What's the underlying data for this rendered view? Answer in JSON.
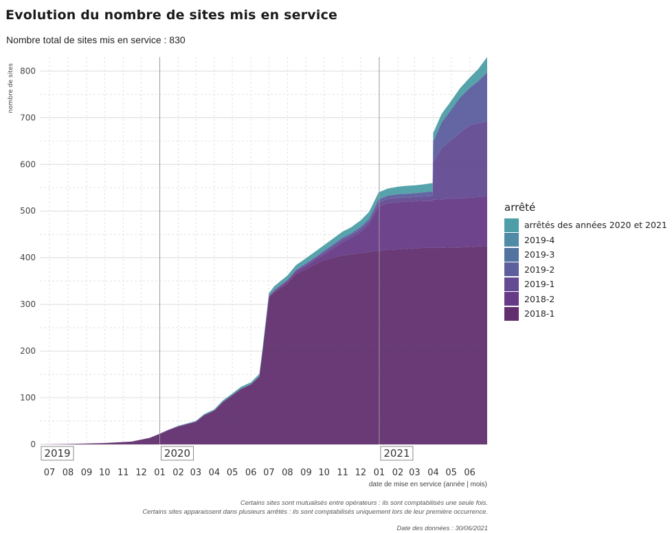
{
  "header": {
    "title": "Evolution du nombre de sites mis en service",
    "subtitle": "Nombre total de sites mis en service : 830"
  },
  "captions": {
    "line1": "Certains sites sont mutualisés entre opérateurs : ils sont comptabilisés une seule fois.",
    "line2": "Certains sites apparaissent dans plusieurs arrêtés : ils sont comptabilisés uniquement lors de leur première occurrence.",
    "date": "Date des données : 30/06/2021"
  },
  "colors": {
    "arretes_2020_2021": "#4d9ea6",
    "a2019_4": "#4f8aa6",
    "a2019_3": "#52729f",
    "a2019_2": "#5c5e9e",
    "a2019_1": "#634a92",
    "a2018_2": "#663a86",
    "a2018_1": "#612f6e",
    "grid": "#dcdcdc",
    "year_line": "#9a9a9a"
  },
  "chart_data": {
    "type": "area",
    "stacked": true,
    "ylabel": "nombre de sites",
    "xlabel": "date de mise en service (année | mois)",
    "ylim": [
      0,
      830
    ],
    "yticks": [
      0,
      100,
      200,
      300,
      400,
      500,
      600,
      700,
      800
    ],
    "xlim": [
      "2019-06-15",
      "2021-06-30"
    ],
    "month_ticks": [
      {
        "date": "2019-07-01",
        "label": "07"
      },
      {
        "date": "2019-08-01",
        "label": "08"
      },
      {
        "date": "2019-09-01",
        "label": "09"
      },
      {
        "date": "2019-10-01",
        "label": "10"
      },
      {
        "date": "2019-11-01",
        "label": "11"
      },
      {
        "date": "2019-12-01",
        "label": "12"
      },
      {
        "date": "2020-01-01",
        "label": "01"
      },
      {
        "date": "2020-02-01",
        "label": "02"
      },
      {
        "date": "2020-03-01",
        "label": "03"
      },
      {
        "date": "2020-04-01",
        "label": "04"
      },
      {
        "date": "2020-05-01",
        "label": "05"
      },
      {
        "date": "2020-06-01",
        "label": "06"
      },
      {
        "date": "2020-07-01",
        "label": "07"
      },
      {
        "date": "2020-08-01",
        "label": "08"
      },
      {
        "date": "2020-09-01",
        "label": "09"
      },
      {
        "date": "2020-10-01",
        "label": "10"
      },
      {
        "date": "2020-11-01",
        "label": "11"
      },
      {
        "date": "2020-12-01",
        "label": "12"
      },
      {
        "date": "2021-01-01",
        "label": "01"
      },
      {
        "date": "2021-02-01",
        "label": "02"
      },
      {
        "date": "2021-03-01",
        "label": "03"
      },
      {
        "date": "2021-04-01",
        "label": "04"
      },
      {
        "date": "2021-05-01",
        "label": "05"
      },
      {
        "date": "2021-06-01",
        "label": "06"
      }
    ],
    "year_markers": [
      {
        "date": "2019-06-15",
        "label": "2019"
      },
      {
        "date": "2020-01-01",
        "label": "2020"
      },
      {
        "date": "2021-01-01",
        "label": "2021"
      }
    ],
    "legend_title": "arrêté",
    "legend_order": [
      "arrêtés des années 2020 et 2021",
      "2019-4",
      "2019-3",
      "2019-2",
      "2019-1",
      "2018-2",
      "2018-1"
    ],
    "x": [
      "2019-06-15",
      "2019-08-01",
      "2019-10-01",
      "2019-11-15",
      "2019-12-15",
      "2020-01-01",
      "2020-01-15",
      "2020-02-01",
      "2020-03-01",
      "2020-03-15",
      "2020-04-01",
      "2020-04-15",
      "2020-05-01",
      "2020-05-15",
      "2020-06-01",
      "2020-06-15",
      "2020-06-20",
      "2020-07-01",
      "2020-07-10",
      "2020-08-01",
      "2020-08-15",
      "2020-09-01",
      "2020-09-15",
      "2020-10-01",
      "2020-11-01",
      "2020-11-15",
      "2020-12-01",
      "2020-12-15",
      "2020-12-31",
      "2021-01-15",
      "2021-02-01",
      "2021-02-15",
      "2021-03-01",
      "2021-03-15",
      "2021-03-31",
      "2021-04-01",
      "2021-04-15",
      "2021-05-01",
      "2021-05-15",
      "2021-06-01",
      "2021-06-15",
      "2021-06-30"
    ],
    "series": [
      {
        "name": "2018-1",
        "values": [
          0,
          1,
          3,
          6,
          14,
          22,
          30,
          38,
          48,
          62,
          72,
          90,
          105,
          118,
          128,
          145,
          195,
          315,
          325,
          345,
          365,
          375,
          385,
          395,
          405,
          407,
          410,
          412,
          415,
          417,
          418,
          419,
          420,
          421,
          421,
          421,
          421,
          422,
          422,
          423,
          424,
          425
        ]
      },
      {
        "name": "2018-2",
        "values": [
          0,
          0,
          0,
          0,
          0,
          1,
          1,
          1,
          1,
          1,
          1,
          1,
          1,
          1,
          1,
          1,
          1,
          2,
          3,
          4,
          5,
          7,
          9,
          12,
          28,
          35,
          45,
          60,
          95,
          100,
          101,
          101,
          101,
          101,
          101,
          103,
          104,
          105,
          105,
          106,
          106,
          107
        ]
      },
      {
        "name": "2019-1",
        "values": [
          0,
          0,
          0,
          0,
          0,
          0,
          0,
          0,
          0,
          0,
          0,
          0,
          0,
          0,
          0,
          0,
          0,
          1,
          2,
          3,
          3,
          4,
          4,
          5,
          6,
          6,
          6,
          6,
          8,
          9,
          9,
          9,
          9,
          9,
          10,
          80,
          110,
          125,
          140,
          155,
          158,
          160
        ]
      },
      {
        "name": "2019-2",
        "values": [
          0,
          0,
          0,
          0,
          0,
          0,
          0,
          0,
          0,
          0,
          0,
          0,
          0,
          0,
          0,
          0,
          0,
          0,
          1,
          1,
          1,
          2,
          2,
          3,
          4,
          4,
          5,
          5,
          7,
          7,
          8,
          8,
          8,
          9,
          10,
          45,
          55,
          65,
          75,
          80,
          90,
          105
        ]
      },
      {
        "name": "2019-3",
        "values": [
          0,
          0,
          0,
          0,
          0,
          0,
          0,
          0,
          0,
          0,
          0,
          0,
          0,
          0,
          0,
          0,
          0,
          0,
          0,
          0,
          0,
          0,
          0,
          0,
          0,
          0,
          0,
          0,
          0,
          0,
          0,
          0,
          0,
          0,
          0,
          0,
          0,
          0,
          0,
          0,
          0,
          0
        ]
      },
      {
        "name": "2019-4",
        "values": [
          0,
          0,
          0,
          0,
          0,
          0,
          0,
          0,
          0,
          0,
          0,
          0,
          0,
          0,
          0,
          0,
          0,
          0,
          0,
          0,
          0,
          0,
          0,
          0,
          0,
          0,
          0,
          0,
          0,
          0,
          0,
          0,
          0,
          0,
          0,
          0,
          0,
          0,
          0,
          0,
          0,
          0
        ]
      },
      {
        "name": "arrêtés des années 2020 et 2021",
        "values": [
          0,
          0,
          0,
          0,
          0,
          0,
          0,
          1,
          1,
          2,
          2,
          3,
          3,
          4,
          4,
          5,
          5,
          6,
          8,
          9,
          10,
          11,
          12,
          12,
          13,
          13,
          14,
          15,
          15,
          15,
          16,
          17,
          17,
          17,
          18,
          18,
          18,
          19,
          20,
          22,
          26,
          33
        ]
      }
    ]
  }
}
